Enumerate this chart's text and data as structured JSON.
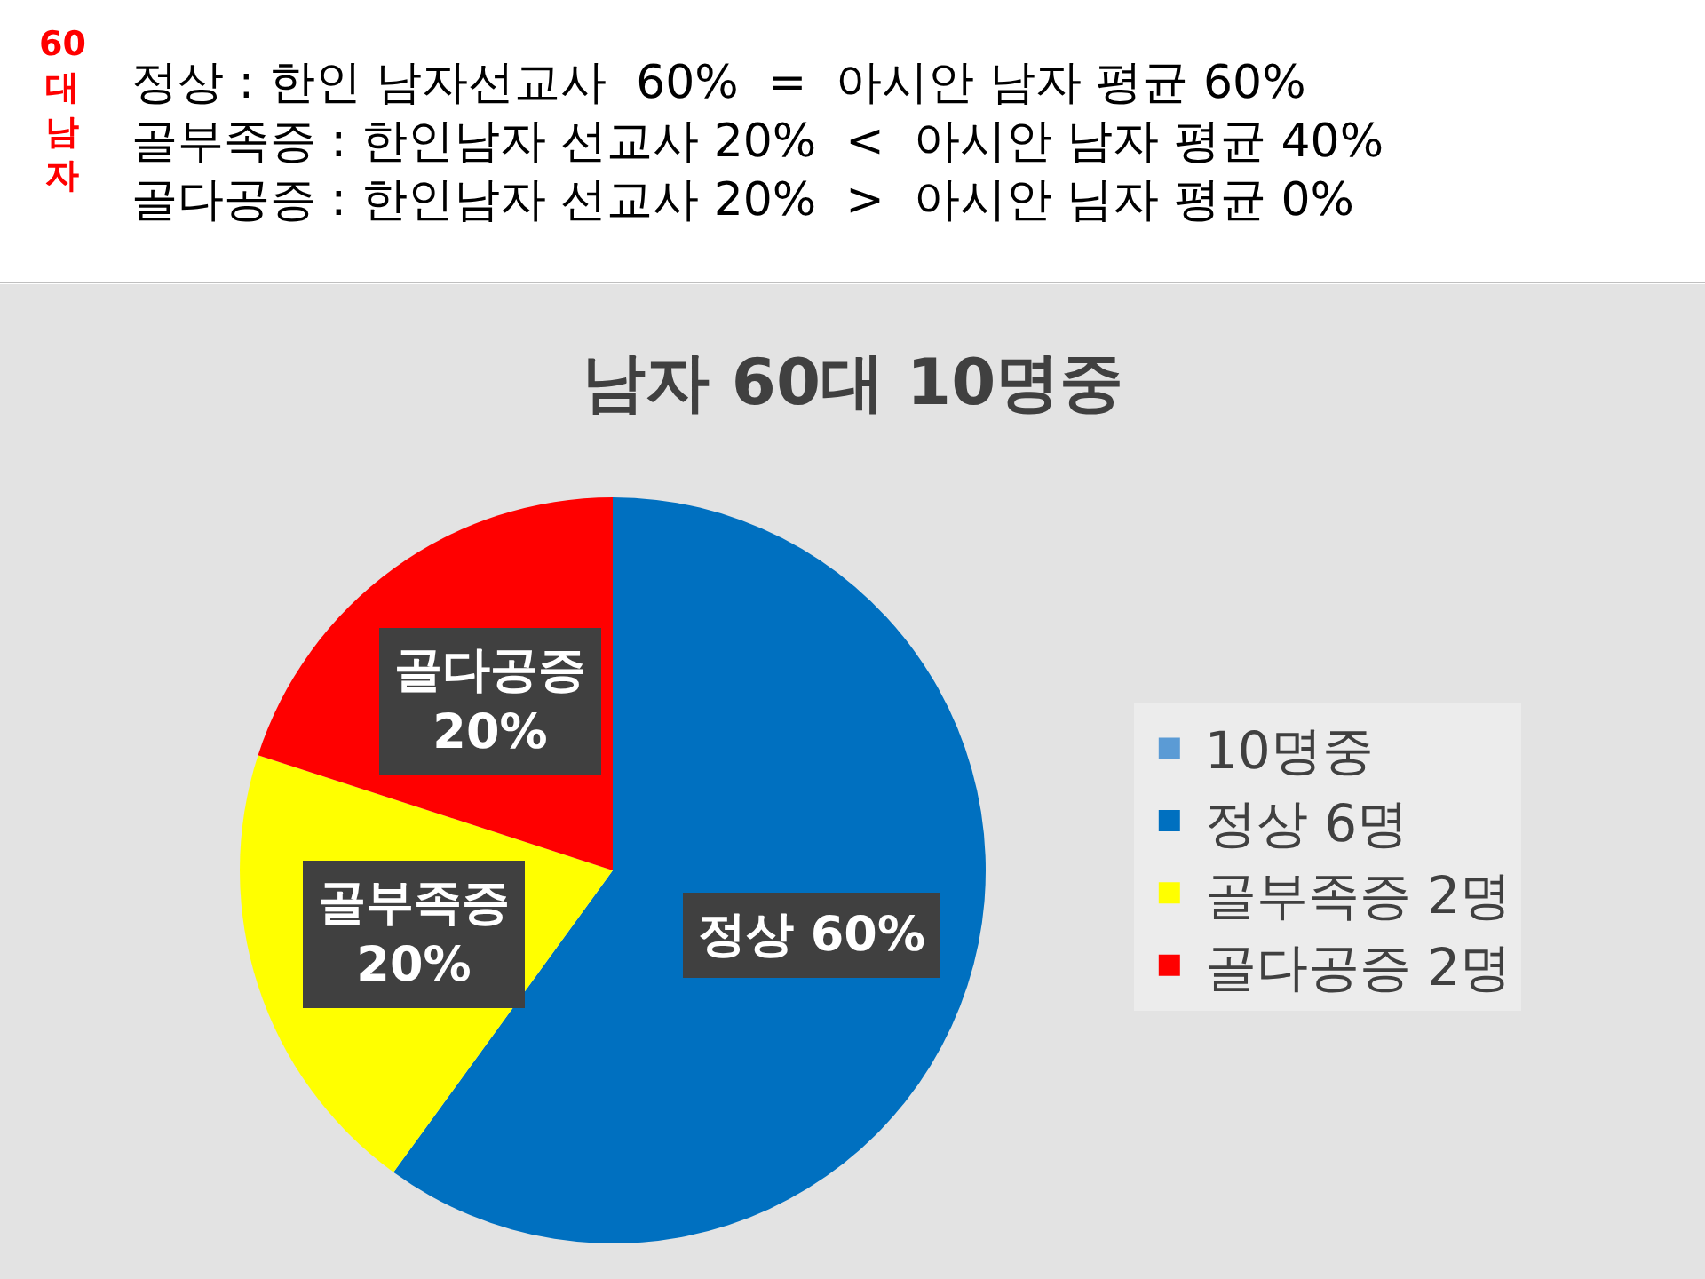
{
  "chart_data": {
    "type": "pie",
    "title": "남자 60대 10명중",
    "categories": [
      "10명중",
      "정상 6명",
      "골부족증 2명",
      "골다공증 2명"
    ],
    "values": [
      0,
      60,
      20,
      20
    ],
    "colors": [
      "#5b9bd5",
      "#0070c0",
      "#ffff00",
      "#ff0000"
    ],
    "value_labels": [
      null,
      "정상 60%",
      "골부족증\n20%",
      "골다공증\n20%"
    ],
    "legend": "right",
    "annotations": [
      "60\n대\n남\n자",
      "정상 : 한인 남자선교사  60%  =  아시안 남자 평균 60%",
      "골부족증 : 한인남자 선교사 20%  <  아시안 남자 평균 40%",
      "골다공증 : 한인남자 선교사 20%  >  아시안 님자 평균 0%"
    ]
  }
}
